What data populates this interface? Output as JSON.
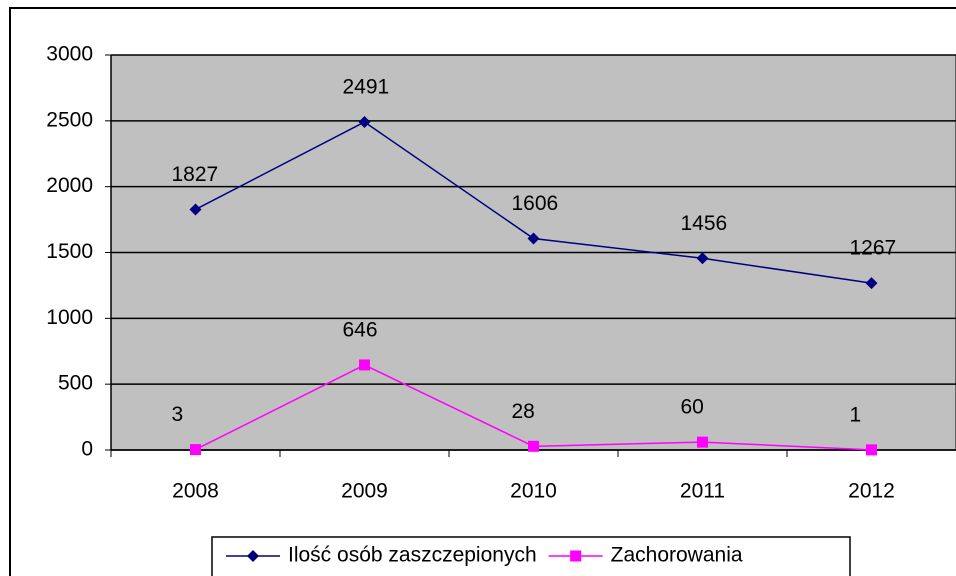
{
  "chart_data": {
    "type": "line",
    "categories": [
      "2008",
      "2009",
      "2010",
      "2011",
      "2012"
    ],
    "series": [
      {
        "name": "Ilość osób zaszczepionych",
        "color": "#000080",
        "marker": "diamond",
        "values": [
          1827,
          2491,
          1606,
          1456,
          1267
        ]
      },
      {
        "name": "Zachorowania",
        "color": "#ff00ff",
        "marker": "square",
        "values": [
          3,
          646,
          28,
          60,
          1
        ]
      }
    ],
    "ylim": [
      0,
      3000
    ],
    "yticks": [
      0,
      500,
      1000,
      1500,
      2000,
      2500,
      3000
    ],
    "grid": true,
    "legend": "bottom",
    "plot_background": "#c0c0c0"
  }
}
